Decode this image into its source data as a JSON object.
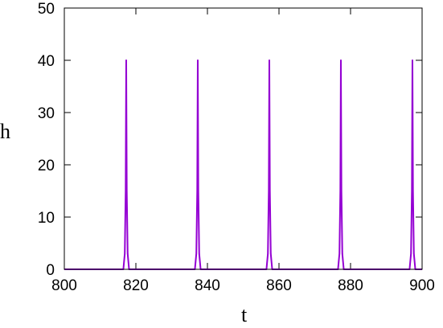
{
  "chart_data": {
    "type": "line",
    "xlabel": "t",
    "ylabel": "h",
    "x": [
      800,
      816.5,
      816.9,
      817.15,
      817.3,
      817.45,
      817.7,
      818.1,
      836.5,
      836.9,
      837.15,
      837.3,
      837.45,
      837.7,
      838.1,
      856.5,
      856.9,
      857.15,
      857.3,
      857.45,
      857.7,
      858.1,
      876.5,
      876.9,
      877.15,
      877.3,
      877.45,
      877.7,
      878.1,
      896.5,
      896.9,
      897.15,
      897.3,
      897.45,
      897.7,
      898.1,
      900
    ],
    "series": [
      {
        "color": "#9400d3",
        "values": [
          0,
          0,
          3,
          15,
          40,
          15,
          3,
          0,
          0,
          3,
          15,
          40,
          15,
          3,
          0,
          0,
          3,
          15,
          40,
          15,
          3,
          0,
          0,
          3,
          15,
          40,
          15,
          3,
          0,
          0,
          3,
          15,
          40,
          15,
          3,
          0,
          0
        ]
      }
    ],
    "xlim": [
      800,
      900
    ],
    "ylim": [
      0,
      50
    ],
    "xticks": [
      800,
      820,
      840,
      860,
      880,
      900
    ],
    "yticks": [
      0,
      10,
      20,
      30,
      40,
      50
    ],
    "grid": false
  }
}
